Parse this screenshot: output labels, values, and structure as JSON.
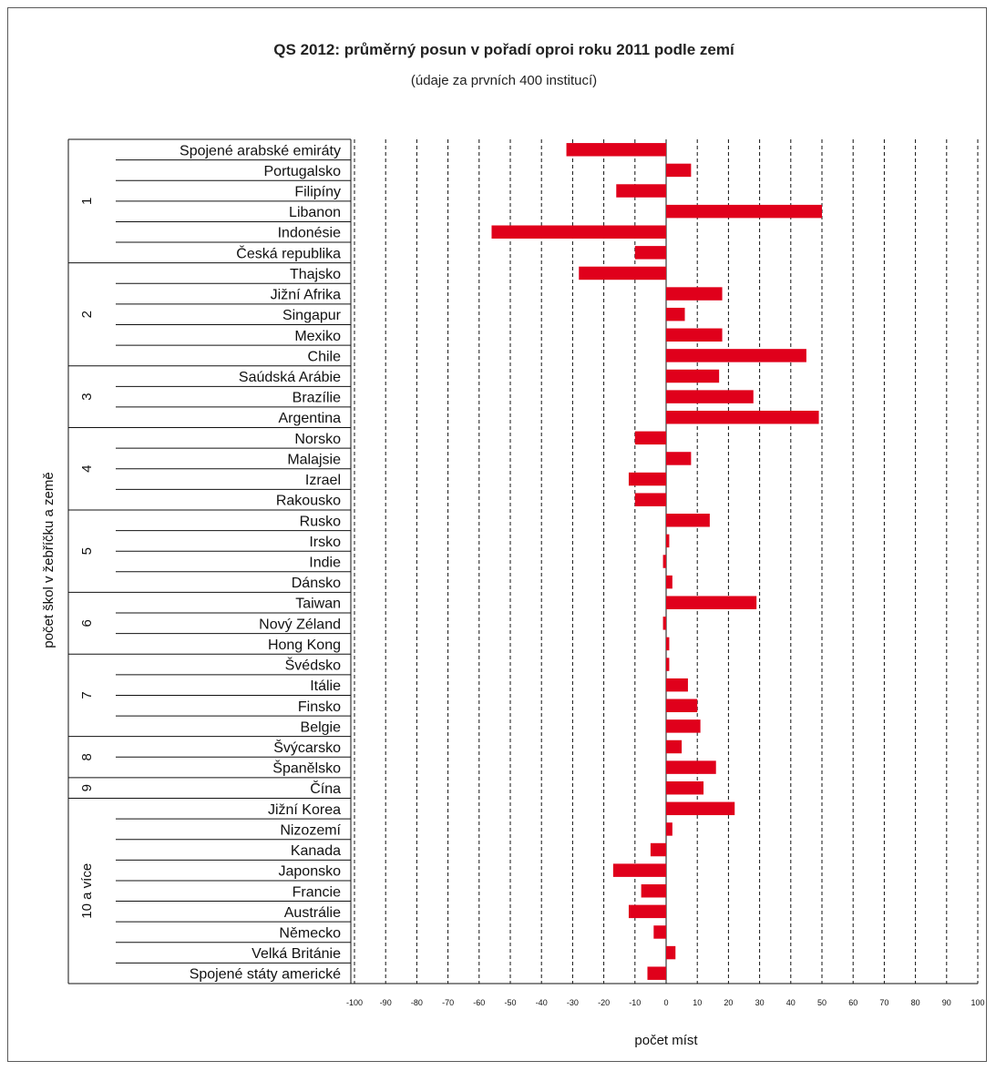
{
  "chart_data": {
    "type": "bar",
    "orientation": "horizontal",
    "title": "QS 2012: průměrný posun v pořadí oproi roku 2011 podle zemí",
    "subtitle": "(údaje za prvních 400 institucí)",
    "xlabel": "počet míst",
    "ylabel": "počet škol v žebříčku a země",
    "xlim": [
      -100,
      100
    ],
    "xticks": [
      -100,
      -90,
      -80,
      -70,
      -60,
      -50,
      -40,
      -30,
      -20,
      -10,
      0,
      10,
      20,
      30,
      40,
      50,
      60,
      70,
      80,
      90,
      100
    ],
    "grid": "vertical dashed",
    "bar_color": "#e0001b",
    "categories": [
      "Spojené arabské emiráty",
      "Portugalsko",
      "Filipíny",
      "Libanon",
      "Indonésie",
      "Česká republika",
      "Thajsko",
      "Jižní Afrika",
      "Singapur",
      "Mexiko",
      "Chile",
      "Saúdská Arábie",
      "Brazílie",
      "Argentina",
      "Norsko",
      "Malajsie",
      "Izrael",
      "Rakousko",
      "Rusko",
      "Irsko",
      "Indie",
      "Dánsko",
      "Taiwan",
      "Nový Zéland",
      "Hong Kong",
      "Švédsko",
      "Itálie",
      "Finsko",
      "Belgie",
      "Švýcarsko",
      "Španělsko",
      "Čína",
      "Jižní Korea",
      "Nizozemí",
      "Kanada",
      "Japonsko",
      "Francie",
      "Austrálie",
      "Německo",
      "Velká Británie",
      "Spojené státy americké"
    ],
    "values": [
      -32,
      8,
      -16,
      50,
      -56,
      -10,
      -28,
      18,
      6,
      18,
      45,
      17,
      28,
      49,
      -10,
      8,
      -12,
      -10,
      14,
      1,
      -1,
      2,
      29,
      -1,
      1,
      1,
      7,
      10,
      11,
      5,
      16,
      12,
      22,
      2,
      -5,
      -17,
      -8,
      -12,
      -4,
      3,
      -6
    ],
    "groups": [
      {
        "label": "1",
        "count": 6
      },
      {
        "label": "2",
        "count": 5
      },
      {
        "label": "3",
        "count": 3
      },
      {
        "label": "4",
        "count": 4
      },
      {
        "label": "5",
        "count": 4
      },
      {
        "label": "6",
        "count": 3
      },
      {
        "label": "7",
        "count": 4
      },
      {
        "label": "8",
        "count": 2
      },
      {
        "label": "9",
        "count": 1
      },
      {
        "label": "10 a více",
        "count": 9
      }
    ]
  }
}
